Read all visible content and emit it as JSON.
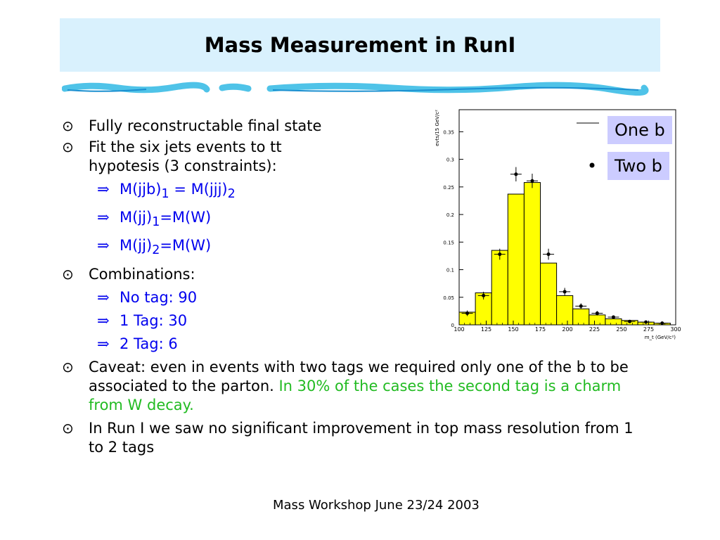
{
  "title": "Mass Measurement in RunI",
  "bullets": {
    "b1": "Fully reconstructable final state",
    "b2_line1": "Fit the six jets events to tt",
    "b2_line2": "hypotesis (3 constraints):",
    "sub1_a": "M(jjb)",
    "sub1_s1": "1",
    "sub1_b": " = M(jjj)",
    "sub1_s2": "2",
    "sub2_a": "M(jj)",
    "sub2_s": "1",
    "sub2_b": "=M(W)",
    "sub3_a": "M(jj)",
    "sub3_s": "2",
    "sub3_b": "=M(W)",
    "b3": "Combinations:",
    "comb1": "No tag: 90",
    "comb2": "1 Tag: 30",
    "comb3": "2 Tag: 6",
    "b4_black": "Caveat: even in events with two tags we required only one of the b to be associated to the parton. ",
    "b4_green": "In 30% of the cases the second tag is a charm from W decay.",
    "b5": "In Run I  we saw no significant improvement in top mass resolution from 1 to 2 tags"
  },
  "legend": {
    "one_b": "One b",
    "two_b": "Two b"
  },
  "footer": "Mass Workshop June 23/24 2003",
  "colors": {
    "title_bg": "#d9f1fd",
    "histogram_fill": "#ffff00",
    "legend_bg": "#ccccff",
    "sub_text": "#0000ee",
    "highlight_text": "#22bb22"
  },
  "chart_data": {
    "type": "bar",
    "xlabel": "m_t (GeV/c²)",
    "ylabel": "evts/15 GeV/c²",
    "xlim": [
      100,
      300
    ],
    "ylim": [
      0,
      0.39
    ],
    "x_ticks": [
      "100",
      "125",
      "150",
      "175",
      "200",
      "225",
      "250",
      "275",
      "300"
    ],
    "y_ticks": [
      "0",
      "0.05",
      "0.1",
      "0.15",
      "0.2",
      "0.25",
      "0.3",
      "0.35"
    ],
    "bin_edges": [
      100,
      115,
      130,
      145,
      160,
      175,
      190,
      205,
      220,
      235,
      250,
      265,
      280,
      295
    ],
    "series": [
      {
        "name": "One b",
        "style": "histogram",
        "values": [
          0.023,
          0.058,
          0.135,
          0.237,
          0.258,
          0.112,
          0.053,
          0.029,
          0.018,
          0.011,
          0.008,
          0.005,
          0.003
        ]
      },
      {
        "name": "Two b",
        "style": "points",
        "x": [
          107.5,
          122.5,
          137.5,
          152.5,
          167.5,
          182.5,
          197.5,
          212.5,
          227.5,
          242.5,
          257.5,
          272.5,
          287.5
        ],
        "y": [
          0.021,
          0.053,
          0.128,
          0.273,
          0.261,
          0.128,
          0.06,
          0.034,
          0.021,
          0.014,
          0.006,
          0.005,
          0.003
        ],
        "yerr": [
          0.005,
          0.007,
          0.01,
          0.013,
          0.013,
          0.01,
          0.007,
          0.005,
          0.004,
          0.003,
          0.002,
          0.002,
          0.0015
        ]
      }
    ]
  }
}
